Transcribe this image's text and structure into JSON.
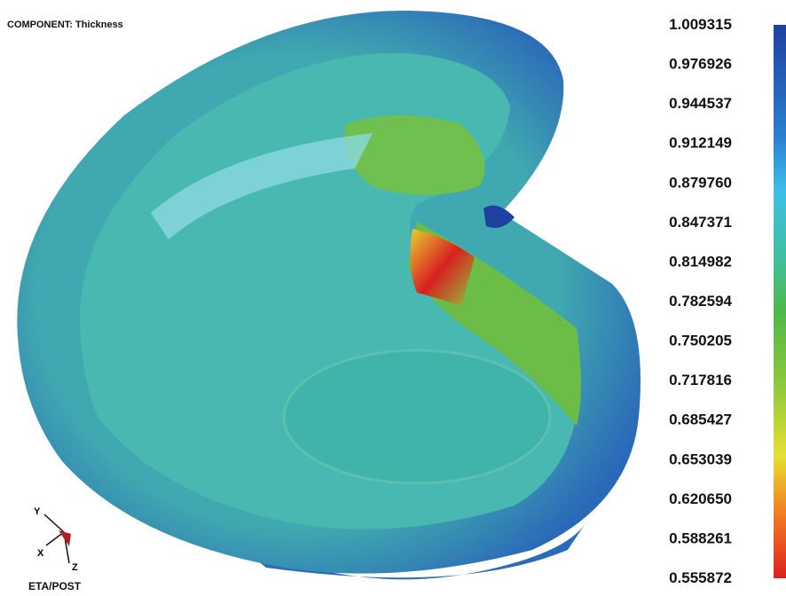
{
  "header": {
    "title": "COMPONENT: Thickness"
  },
  "legend": {
    "labels": [
      "1.009315",
      "0.976926",
      "0.944537",
      "0.912149",
      "0.879760",
      "0.847371",
      "0.814982",
      "0.782594",
      "0.750205",
      "0.717816",
      "0.685427",
      "0.653039",
      "0.620650",
      "0.588261",
      "0.555872"
    ]
  },
  "triad": {
    "x": "X",
    "y": "Y",
    "z": "Z"
  },
  "footer": {
    "brand": "ETA/POST"
  }
}
